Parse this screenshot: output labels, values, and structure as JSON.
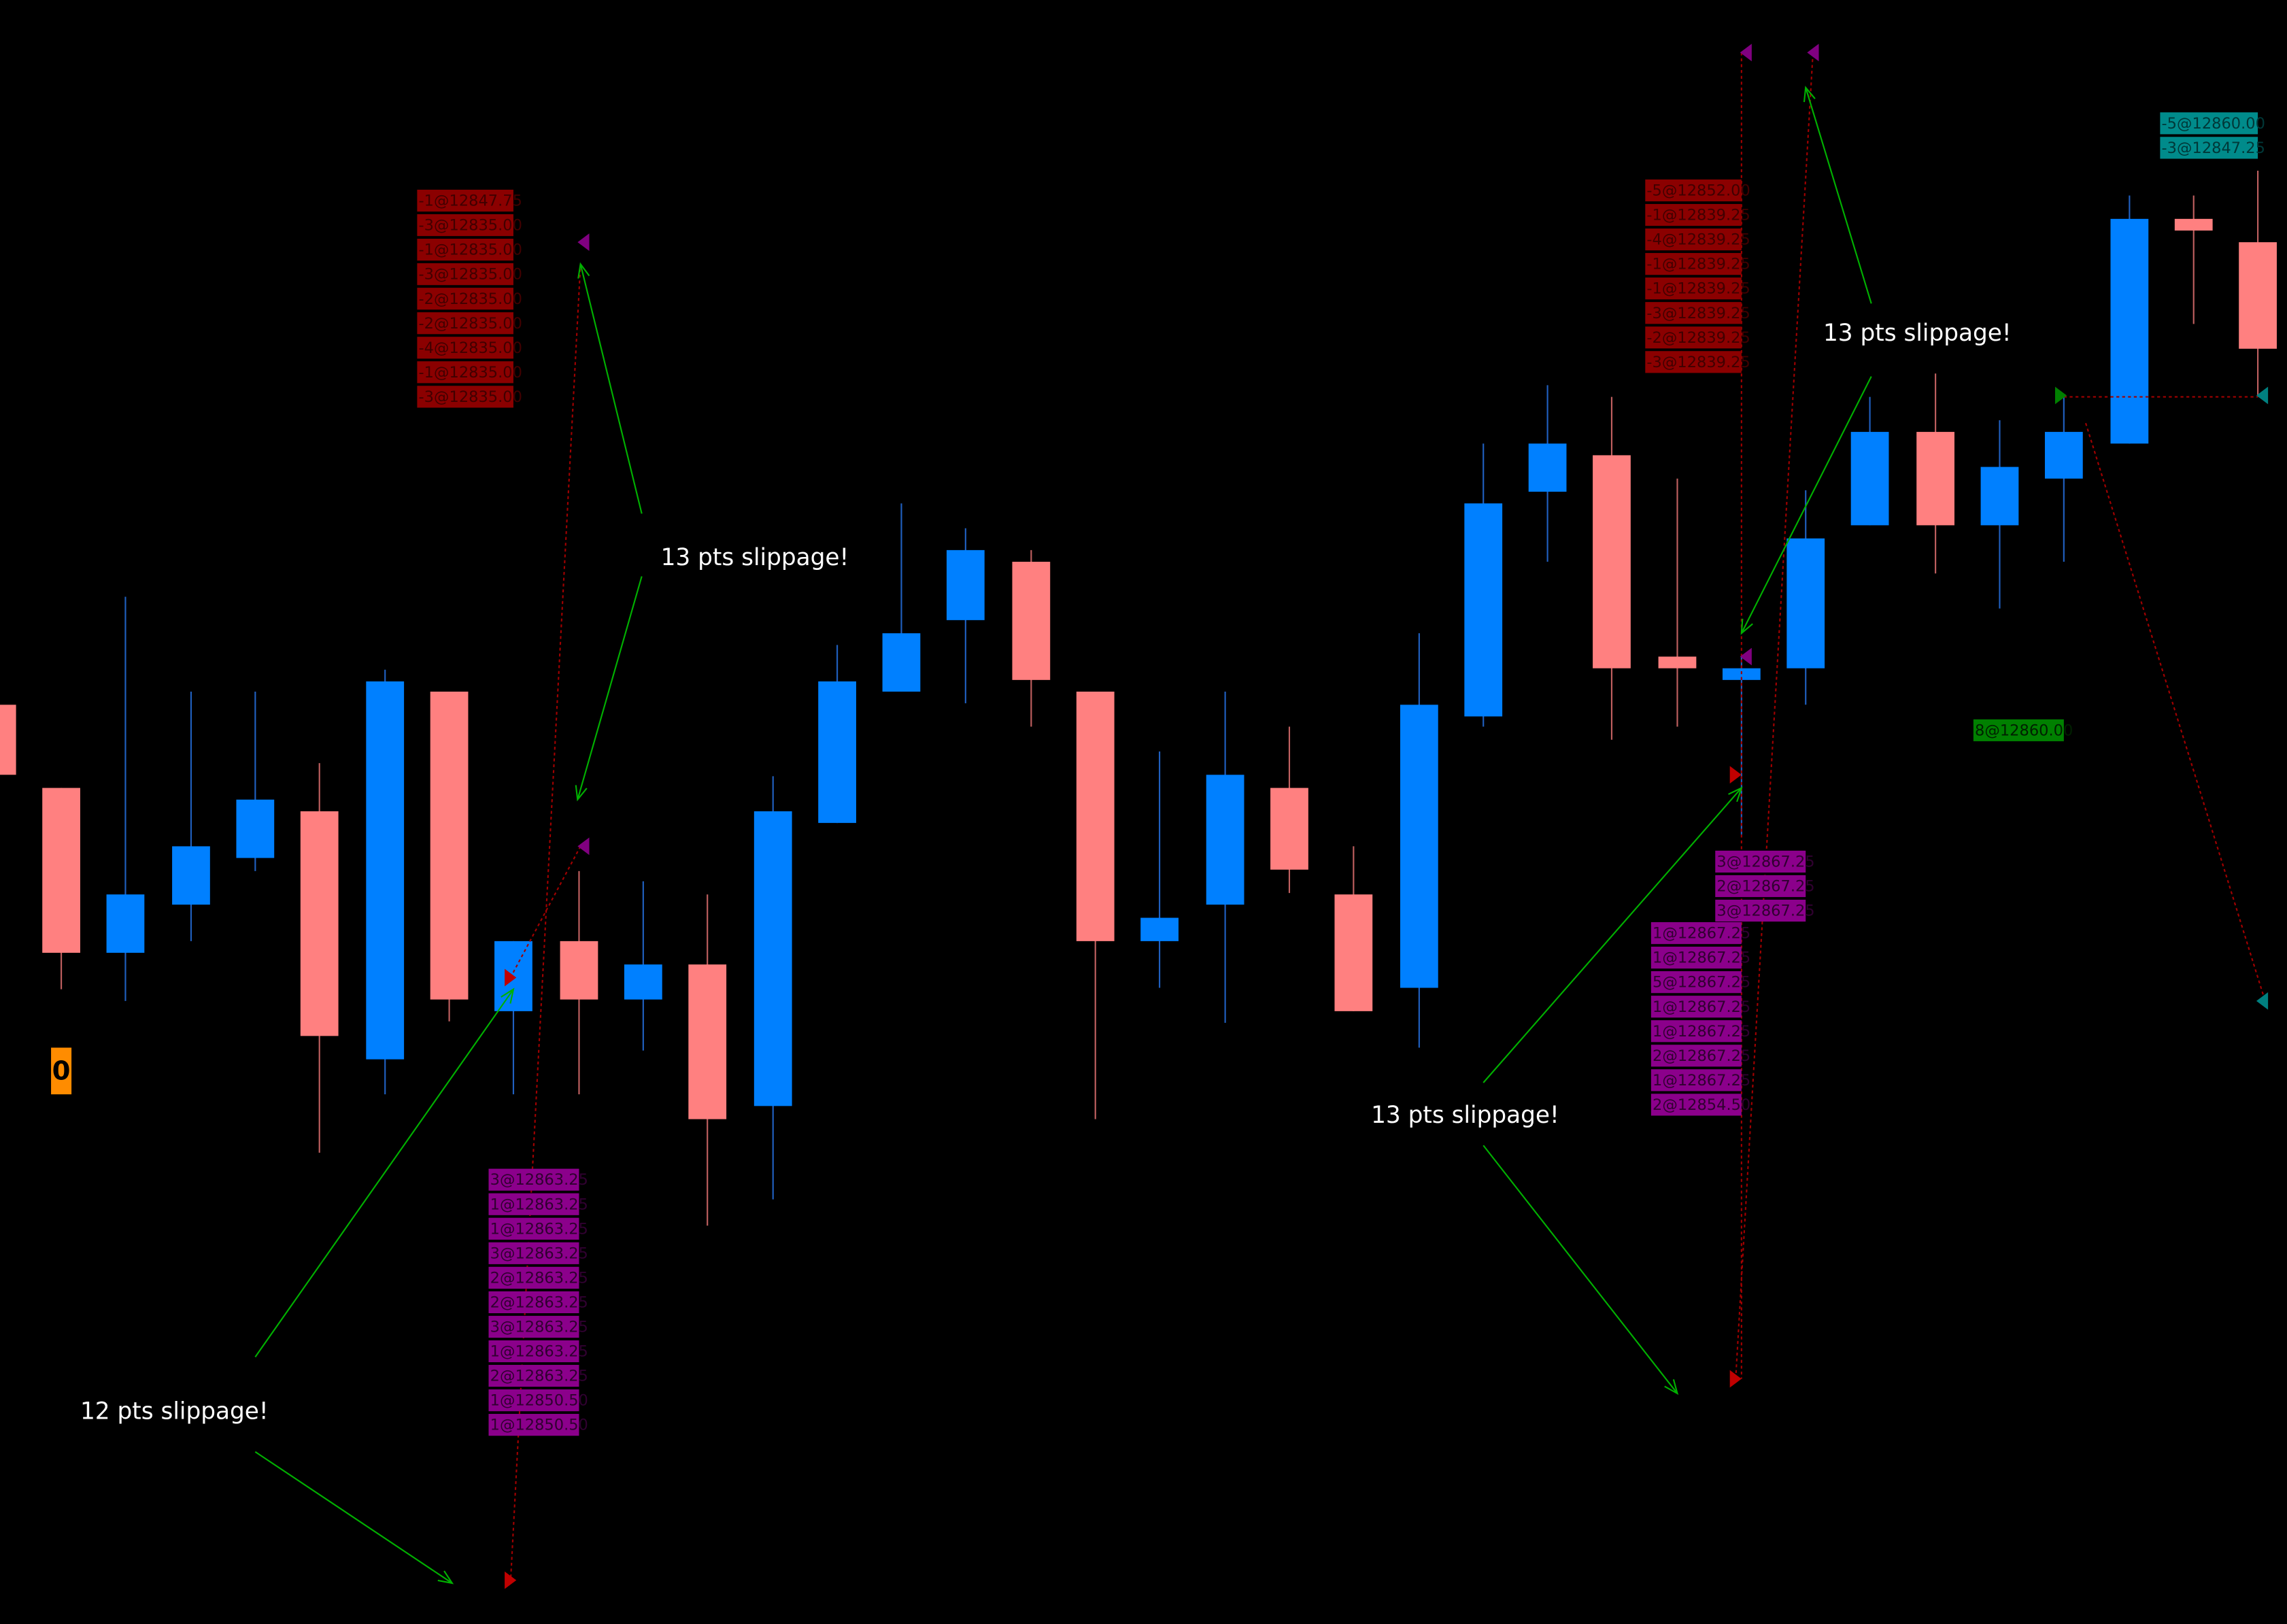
{
  "annotations": [
    "13 pts slippage!",
    "12 pts slippage!",
    "13 pts slippage!",
    "13 pts slippage!"
  ],
  "position_box": "0",
  "order_groups": [
    [
      "-1@12847.75",
      "-3@12835.00",
      "-1@12835.00",
      "-3@12835.00",
      "-2@12835.00",
      "-2@12835.00",
      "-4@12835.00",
      "-1@12835.00",
      "-3@12835.00"
    ],
    [
      "3@12863.25",
      "1@12863.25",
      "1@12863.25",
      "3@12863.25",
      "2@12863.25",
      "2@12863.25",
      "3@12863.25",
      "1@12863.25",
      "2@12863.25",
      "1@12850.50",
      "1@12850.50"
    ],
    [
      "-5@12852.00",
      "-1@12839.25",
      "-4@12839.25",
      "-1@12839.25",
      "-1@12839.25",
      "-3@12839.25",
      "-2@12839.25",
      "-3@12839.25"
    ],
    [
      "3@12867.25",
      "2@12867.25",
      "3@12867.25"
    ],
    [
      "1@12867.25",
      "1@12867.25",
      "5@12867.25",
      "1@12867.25",
      "1@12867.25",
      "2@12867.25",
      "1@12867.25",
      "2@12854.50"
    ],
    [
      "-5@12860.00",
      "-3@12847.25"
    ],
    [
      "8@12860.00"
    ]
  ]
}
